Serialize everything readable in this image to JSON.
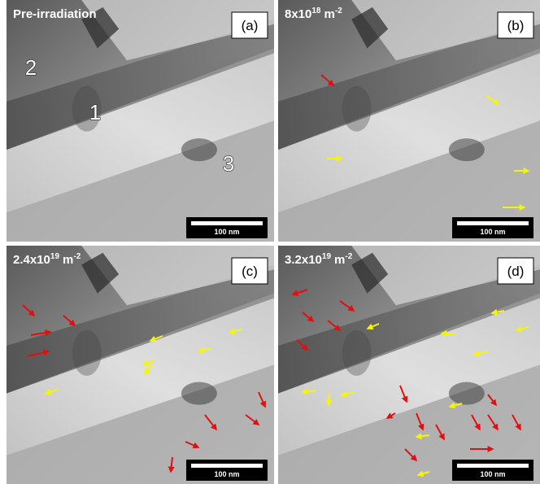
{
  "panels": [
    {
      "title": {
        "base": "Pre-irradiation"
      },
      "label": "(a)",
      "scale_bar": "100 nm",
      "grain_labels": [
        "2",
        "1",
        "3"
      ]
    },
    {
      "title": {
        "base": "8x10",
        "exponent": "18",
        "unit": "m",
        "unit_exponent": "-2"
      },
      "label": "(b)",
      "scale_bar": "100 nm"
    },
    {
      "title": {
        "base": "2.4x10",
        "exponent": "19",
        "unit": "m",
        "unit_exponent": "-2"
      },
      "label": "(c)",
      "scale_bar": "100 nm"
    },
    {
      "title": {
        "base": "3.2x10",
        "exponent": "19",
        "unit": "m",
        "unit_exponent": "-2"
      },
      "label": "(d)",
      "scale_bar": "100 nm"
    }
  ]
}
